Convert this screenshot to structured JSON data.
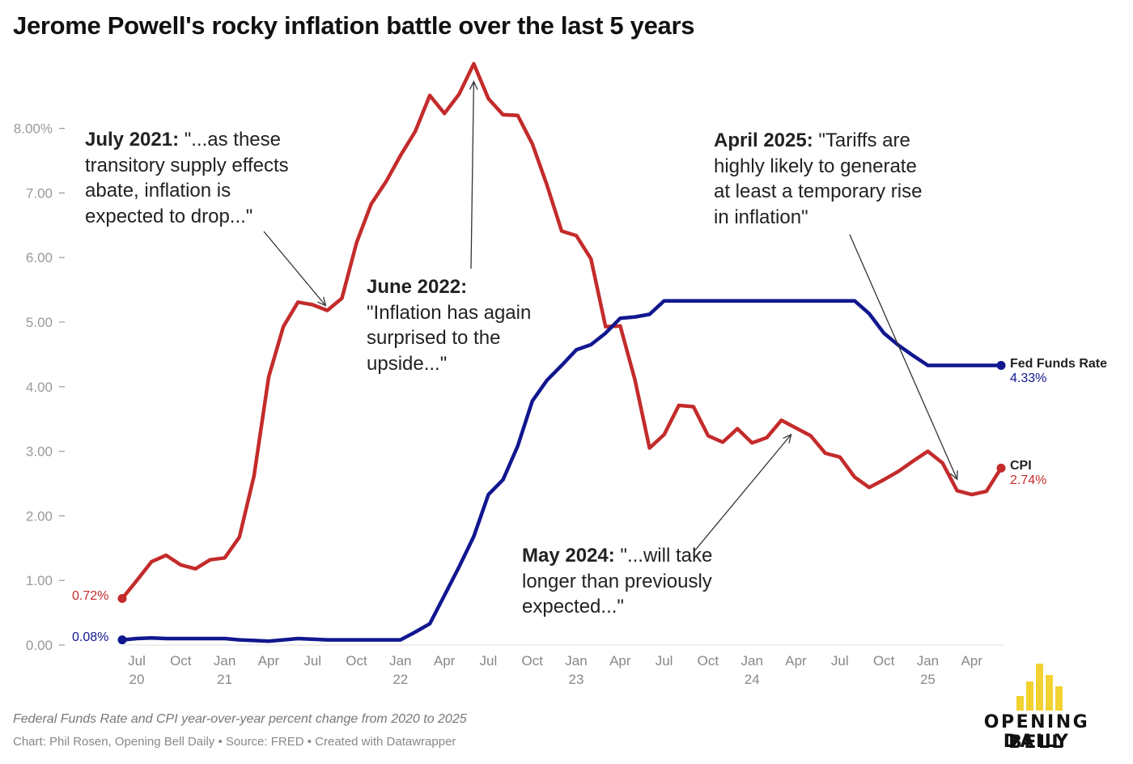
{
  "title": "Jerome Powell's rocky inflation battle over the last 5 years",
  "notes": "Federal Funds Rate and CPI year-over-year percent change from 2020 to 2025",
  "source": "Chart: Phil Rosen, Opening Bell Daily • Source: FRED • Created with Datawrapper",
  "brand": {
    "line1": "OPENING BELL",
    "line2": "DAILY",
    "color": "#f2d231"
  },
  "annotations": {
    "july2021": {
      "head": "July 2021:",
      "lines": [
        " \"...as these",
        "transitory supply effects",
        "abate, inflation is",
        "expected to drop...\""
      ]
    },
    "june2022": {
      "head": "June 2022:",
      "lines": [
        "",
        "\"Inflation has again",
        "surprised to the",
        "upside...\""
      ]
    },
    "may2024": {
      "head": "May 2024:",
      "lines": [
        " \"...will take",
        "longer than previously",
        "expected...\""
      ]
    },
    "april2025": {
      "head": "April 2025:",
      "lines": [
        " \"Tariffs are",
        "highly likely to generate",
        "at least a temporary rise",
        "in inflation\""
      ]
    }
  },
  "chart_data": {
    "type": "line",
    "x_unit": "month",
    "x_start": "2020-07",
    "ylim": [
      0,
      9
    ],
    "y_ticks": [
      {
        "value": 0,
        "label": "0.00"
      },
      {
        "value": 1,
        "label": "1.00"
      },
      {
        "value": 2,
        "label": "2.00"
      },
      {
        "value": 3,
        "label": "3.00"
      },
      {
        "value": 4,
        "label": "4.00"
      },
      {
        "value": 5,
        "label": "5.00"
      },
      {
        "value": 6,
        "label": "6.00"
      },
      {
        "value": 7,
        "label": "7.00"
      },
      {
        "value": 8,
        "label": "8.00%"
      }
    ],
    "x_ticks": [
      {
        "month": "2020-07",
        "label": "Jul",
        "year": "20"
      },
      {
        "month": "2020-10",
        "label": "Oct",
        "year": ""
      },
      {
        "month": "2021-01",
        "label": "Jan",
        "year": "21"
      },
      {
        "month": "2021-04",
        "label": "Apr",
        "year": ""
      },
      {
        "month": "2021-07",
        "label": "Jul",
        "year": ""
      },
      {
        "month": "2021-10",
        "label": "Oct",
        "year": ""
      },
      {
        "month": "2022-01",
        "label": "Jan",
        "year": "22"
      },
      {
        "month": "2022-04",
        "label": "Apr",
        "year": ""
      },
      {
        "month": "2022-07",
        "label": "Jul",
        "year": ""
      },
      {
        "month": "2022-10",
        "label": "Oct",
        "year": ""
      },
      {
        "month": "2023-01",
        "label": "Jan",
        "year": "23"
      },
      {
        "month": "2023-04",
        "label": "Apr",
        "year": ""
      },
      {
        "month": "2023-07",
        "label": "Jul",
        "year": ""
      },
      {
        "month": "2023-10",
        "label": "Oct",
        "year": ""
      },
      {
        "month": "2024-01",
        "label": "Jan",
        "year": "24"
      },
      {
        "month": "2024-04",
        "label": "Apr",
        "year": ""
      },
      {
        "month": "2024-07",
        "label": "Jul",
        "year": ""
      },
      {
        "month": "2024-10",
        "label": "Oct",
        "year": ""
      },
      {
        "month": "2025-01",
        "label": "Jan",
        "year": "25"
      },
      {
        "month": "2025-04",
        "label": "Apr",
        "year": ""
      }
    ],
    "series": [
      {
        "name": "CPI",
        "color": "#c42b2b",
        "start_label": "0.72%",
        "end_label": "2.74%",
        "values": [
          0.72,
          1.0,
          1.29,
          1.39,
          1.24,
          1.18,
          1.32,
          1.35,
          1.67,
          2.62,
          4.15,
          4.93,
          5.31,
          5.27,
          5.18,
          5.37,
          6.23,
          6.83,
          7.17,
          7.58,
          7.95,
          8.51,
          8.23,
          8.53,
          9.0,
          8.46,
          8.21,
          8.2,
          7.76,
          7.12,
          6.41,
          6.34,
          5.98,
          4.93,
          4.94,
          4.11,
          3.05,
          3.26,
          3.71,
          3.69,
          3.24,
          3.14,
          3.35,
          3.13,
          3.21,
          3.48,
          3.36,
          3.24,
          2.97,
          2.91,
          2.6,
          2.44,
          2.56,
          2.69,
          2.85,
          3.0,
          2.82,
          2.39,
          2.33,
          2.38,
          2.74
        ]
      },
      {
        "name": "Fed Funds Rate",
        "color": "#11178f",
        "start_label": "0.08%",
        "end_label": "4.33%",
        "values": [
          0.08,
          0.1,
          0.11,
          0.1,
          0.1,
          0.1,
          0.1,
          0.1,
          0.08,
          0.07,
          0.06,
          0.08,
          0.1,
          0.09,
          0.08,
          0.08,
          0.08,
          0.08,
          0.08,
          0.08,
          0.2,
          0.33,
          0.77,
          1.21,
          1.68,
          2.33,
          2.56,
          3.08,
          3.78,
          4.1,
          4.33,
          4.57,
          4.65,
          4.83,
          5.06,
          5.08,
          5.12,
          5.33,
          5.33,
          5.33,
          5.33,
          5.33,
          5.33,
          5.33,
          5.33,
          5.33,
          5.33,
          5.33,
          5.33,
          5.33,
          5.33,
          5.13,
          4.83,
          4.64,
          4.48,
          4.33,
          4.33,
          4.33,
          4.33,
          4.33,
          4.33
        ]
      }
    ]
  }
}
